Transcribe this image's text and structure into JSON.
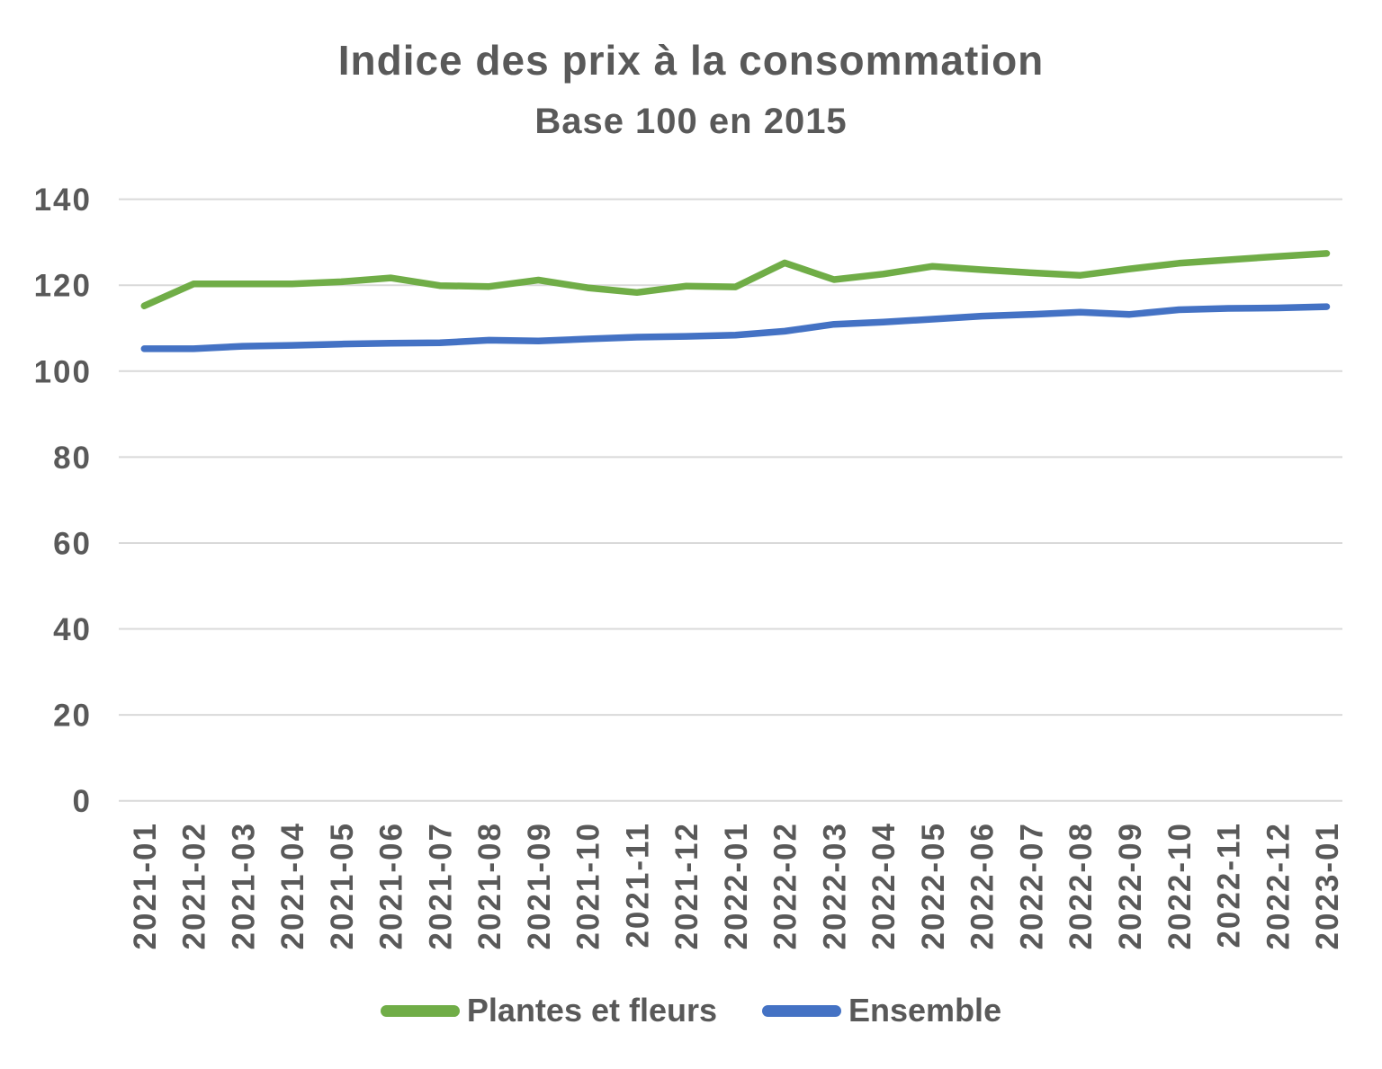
{
  "header": {
    "title": "Indice des prix à la consommation",
    "subtitle": "Base 100 en 2015"
  },
  "chart_data": {
    "type": "line",
    "title": "Indice des prix à la consommation",
    "subtitle": "Base 100 en 2015",
    "categories": [
      "2021-01",
      "2021-02",
      "2021-03",
      "2021-04",
      "2021-05",
      "2021-06",
      "2021-07",
      "2021-08",
      "2021-09",
      "2021-10",
      "2021-11",
      "2021-12",
      "2022-01",
      "2022-02",
      "2022-03",
      "2022-04",
      "2022-05",
      "2022-06",
      "2022-07",
      "2022-08",
      "2022-09",
      "2022-10",
      "2022-11",
      "2022-12",
      "2023-01"
    ],
    "series": [
      {
        "name": "Plantes et fleurs",
        "color": "#70AD47",
        "values": [
          115.2,
          120.3,
          120.3,
          120.3,
          120.8,
          121.7,
          119.9,
          119.7,
          121.2,
          119.4,
          118.3,
          119.8,
          119.6,
          125.2,
          121.3,
          122.6,
          124.4,
          123.6,
          122.9,
          122.3,
          123.8,
          125.1,
          125.9,
          126.7,
          127.4
        ]
      },
      {
        "name": "Ensemble",
        "color": "#4472C4",
        "values": [
          105.2,
          105.2,
          105.8,
          106.0,
          106.3,
          106.5,
          106.6,
          107.2,
          107.0,
          107.5,
          107.9,
          108.1,
          108.4,
          109.3,
          110.9,
          111.4,
          112.1,
          112.8,
          113.2,
          113.7,
          113.2,
          114.3,
          114.6,
          114.7,
          115.0
        ]
      }
    ],
    "xlabel": "",
    "ylabel": "",
    "ylim": [
      0,
      140
    ],
    "yticks": [
      0,
      20,
      40,
      60,
      80,
      100,
      120,
      140
    ],
    "grid": true,
    "legend_position": "bottom"
  },
  "style": {
    "text_color": "#595959",
    "grid_color": "#D9D9D9",
    "background": "#FFFFFF"
  }
}
